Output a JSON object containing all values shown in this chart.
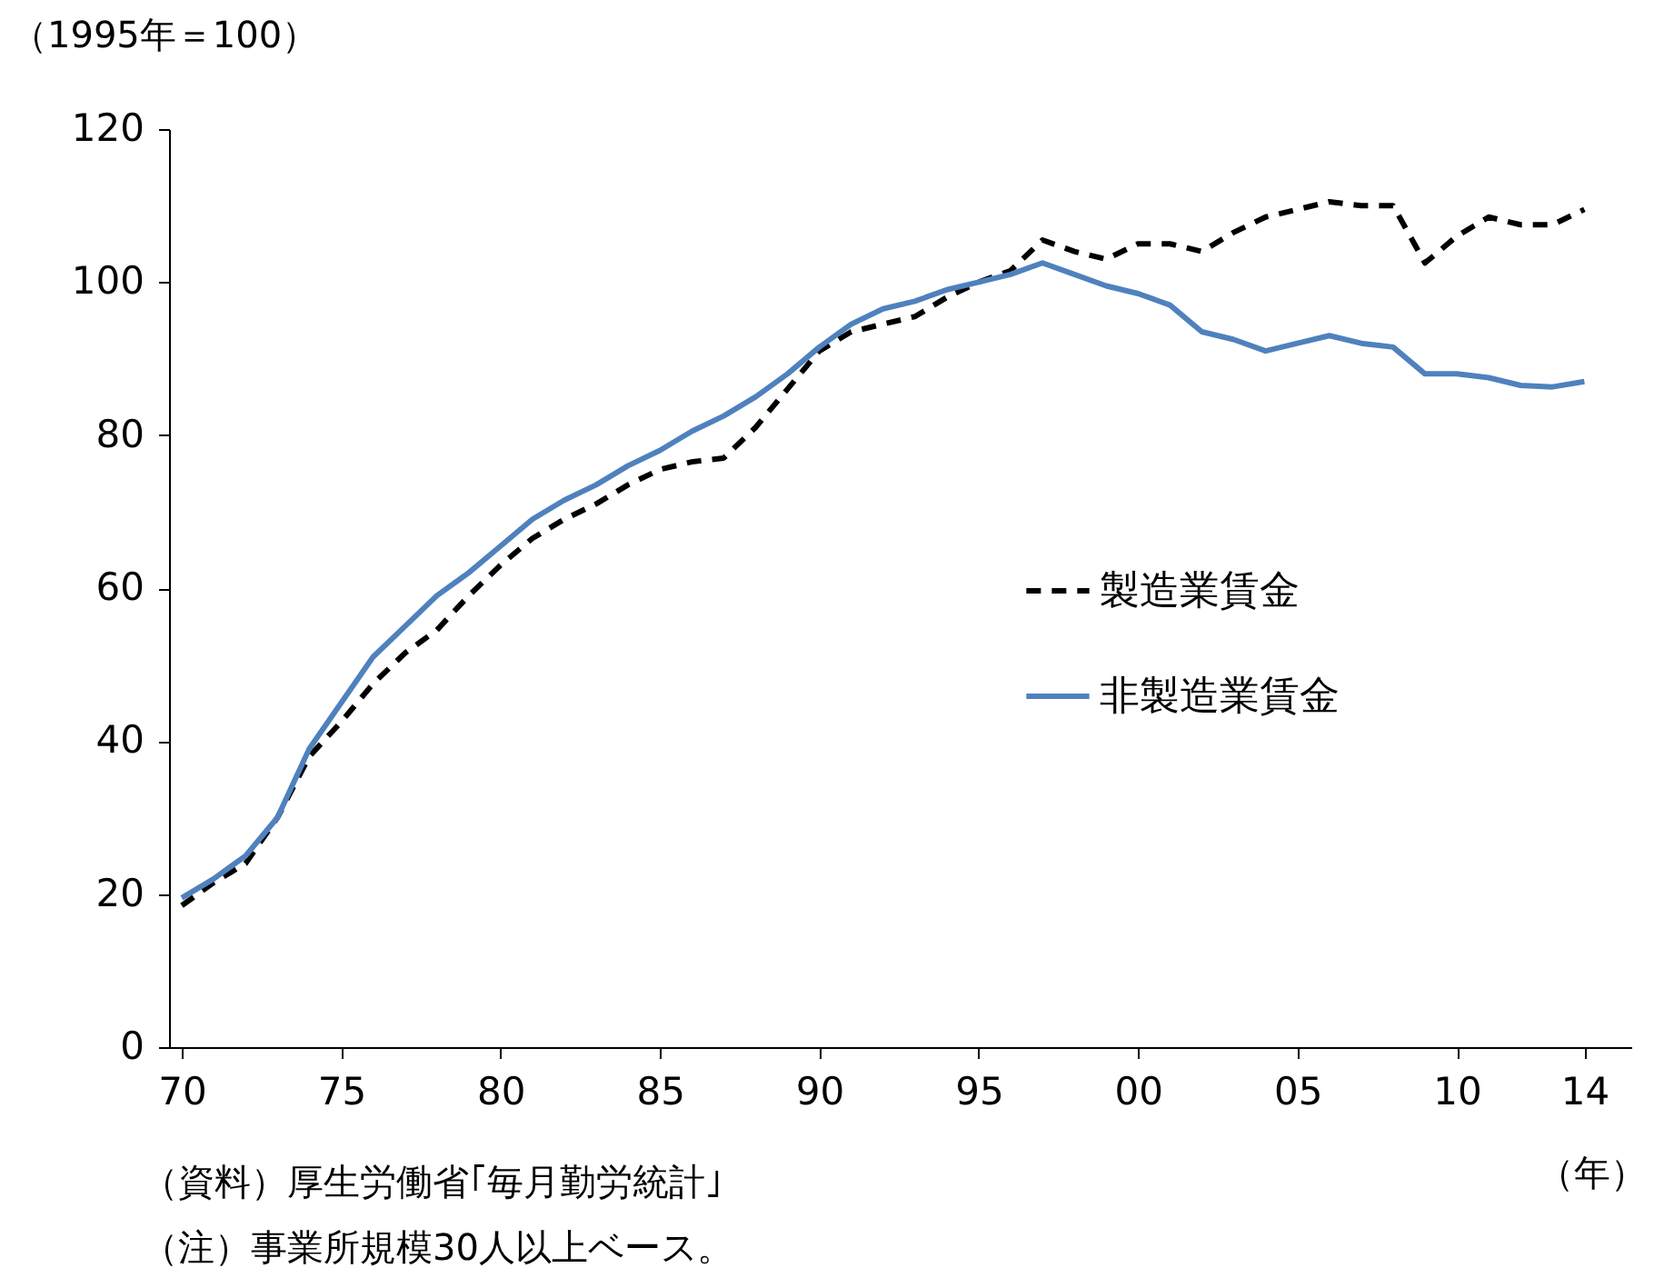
{
  "chart_data": {
    "type": "line",
    "ylabel": "（1995年＝100）",
    "xlabel": "（年）",
    "x": [
      1970,
      1971,
      1972,
      1973,
      1974,
      1975,
      1976,
      1977,
      1978,
      1979,
      1980,
      1981,
      1982,
      1983,
      1984,
      1985,
      1986,
      1987,
      1988,
      1989,
      1990,
      1991,
      1992,
      1993,
      1994,
      1995,
      1996,
      1997,
      1998,
      1999,
      2000,
      2001,
      2002,
      2003,
      2004,
      2005,
      2006,
      2007,
      2008,
      2009,
      2010,
      2011,
      2012,
      2013,
      2014
    ],
    "series": [
      {
        "name": "製造業賃金",
        "color": "#000000",
        "line_style": "dashed",
        "values": [
          18.5,
          21.5,
          24,
          30,
          38,
          42.5,
          47.5,
          51.5,
          54.5,
          59,
          63,
          66.5,
          69,
          71,
          73.5,
          75.5,
          76.5,
          77,
          81,
          86,
          91,
          93.5,
          94.5,
          95.5,
          98,
          100,
          101.5,
          105.5,
          104,
          103,
          105,
          105,
          104,
          106.5,
          108.5,
          109.5,
          110.5,
          110,
          110,
          102.5,
          106,
          108.5,
          107.5,
          107.5,
          109.5
        ]
      },
      {
        "name": "非製造業賃金",
        "color": "#4f81bd",
        "line_style": "solid",
        "values": [
          19.5,
          22,
          25,
          30,
          39,
          45,
          51,
          55,
          59,
          62,
          65.5,
          69,
          71.5,
          73.5,
          76,
          78,
          80.5,
          82.5,
          85,
          88,
          91.5,
          94.5,
          96.5,
          97.5,
          99,
          100,
          101,
          102.5,
          101,
          99.5,
          98.5,
          97,
          93.5,
          92.5,
          91,
          92,
          93,
          92,
          91.5,
          88,
          88,
          87.5,
          86.5,
          86.3,
          87
        ]
      }
    ],
    "xlim": [
      1969.6,
      2015.5
    ],
    "ylim": [
      0,
      120
    ],
    "xticks": [
      {
        "value": 1970,
        "label": "70"
      },
      {
        "value": 1975,
        "label": "75"
      },
      {
        "value": 1980,
        "label": "80"
      },
      {
        "value": 1985,
        "label": "85"
      },
      {
        "value": 1990,
        "label": "90"
      },
      {
        "value": 1995,
        "label": "95"
      },
      {
        "value": 2000,
        "label": "00"
      },
      {
        "value": 2005,
        "label": "05"
      },
      {
        "value": 2010,
        "label": "10"
      },
      {
        "value": 2014,
        "label": "14"
      }
    ],
    "yticks": [
      0,
      20,
      40,
      60,
      80,
      100,
      120
    ],
    "legend": "right",
    "annotations": [
      "（資料）厚生労働省｢毎月勤労統計｣",
      "（注）事業所規模30人以上ベース。"
    ]
  }
}
